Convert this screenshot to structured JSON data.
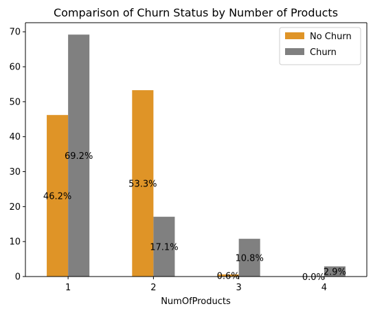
{
  "chart_data": {
    "type": "bar",
    "title": "Comparison of Churn Status by Number of Products",
    "xlabel": "NumOfProducts",
    "ylabel": "",
    "categories": [
      "1",
      "2",
      "3",
      "4"
    ],
    "series": [
      {
        "name": "No Churn",
        "color": "#df9427",
        "values": [
          46.2,
          53.3,
          0.6,
          0.0
        ],
        "labels": [
          "46.2%",
          "53.3%",
          "0.6%",
          "0.0%"
        ]
      },
      {
        "name": "Churn",
        "color": "#808080",
        "values": [
          69.2,
          17.1,
          10.8,
          2.9
        ],
        "labels": [
          "69.2%",
          "17.1%",
          "10.8%",
          "2.9%"
        ]
      }
    ],
    "ylim": [
      0,
      72.6
    ],
    "yticks": [
      0,
      10,
      20,
      30,
      40,
      50,
      60,
      70
    ],
    "grid": false,
    "legend_position": "top-right"
  }
}
